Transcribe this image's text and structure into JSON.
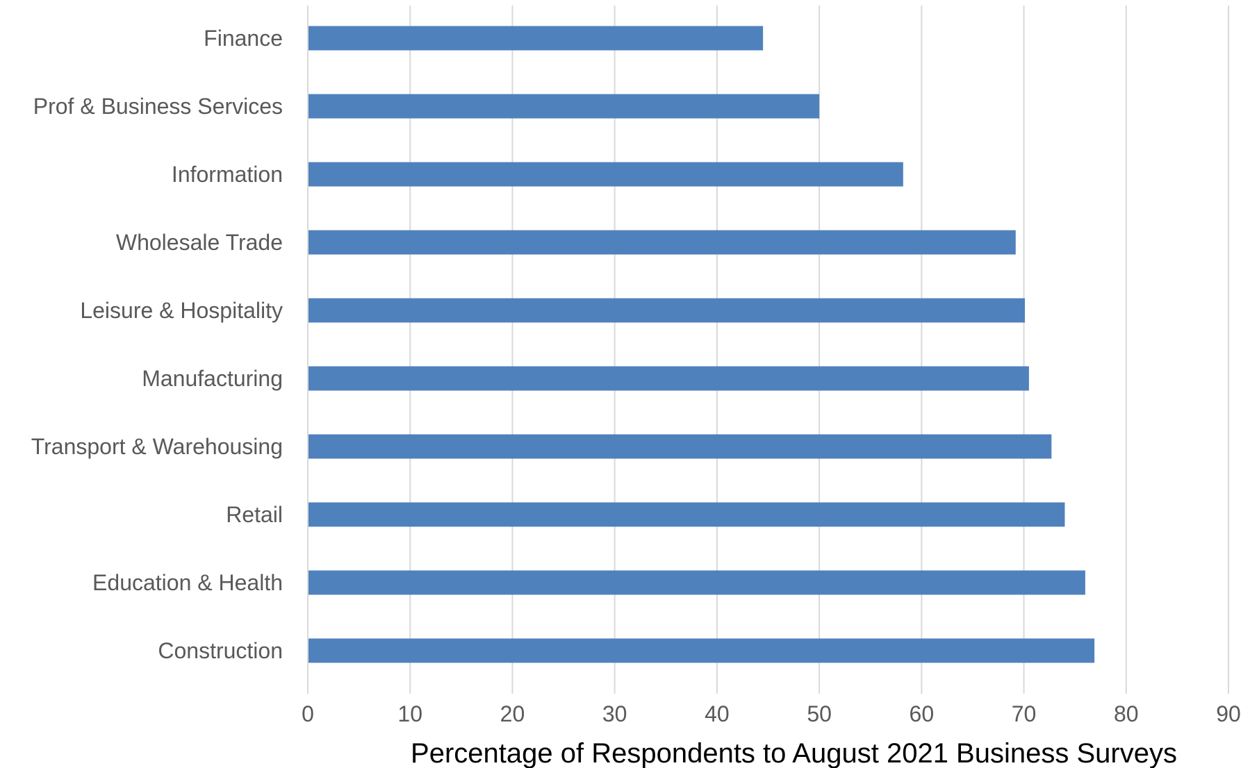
{
  "chart_data": {
    "type": "bar",
    "orientation": "horizontal",
    "categories": [
      "Finance",
      "Prof & Business Services",
      "Information",
      "Wholesale Trade",
      "Leisure & Hospitality",
      "Manufacturing",
      "Transport & Warehousing",
      "Retail",
      "Education & Health",
      "Construction"
    ],
    "values": [
      44.5,
      50,
      58.2,
      69.2,
      70.1,
      70.5,
      72.7,
      74,
      76,
      76.9
    ],
    "title": "",
    "xlabel": "Percentage of Respondents to August 2021 Business Surveys",
    "ylabel": "",
    "xlim": [
      0,
      90
    ],
    "xticks": [
      "0",
      "10",
      "20",
      "30",
      "40",
      "50",
      "60",
      "70",
      "80",
      "90"
    ],
    "grid": true,
    "legend": "none",
    "bar_color": "#4f81bd"
  }
}
